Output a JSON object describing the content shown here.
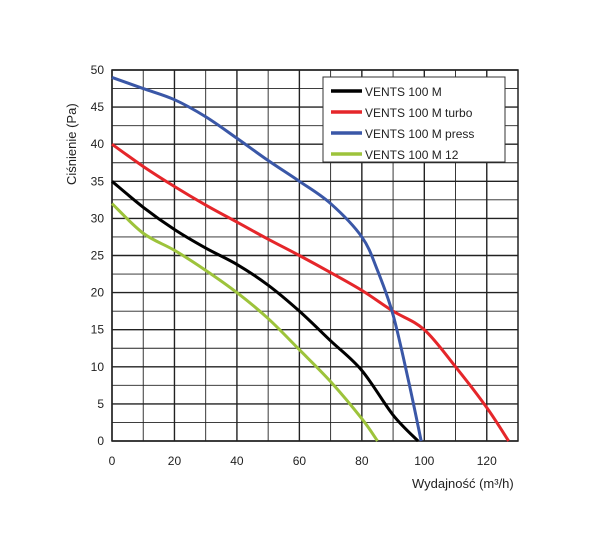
{
  "chart_data": {
    "type": "line",
    "title": "",
    "xlabel": "Wydajność (m³/h)",
    "ylabel": "Ciśnienie (Pa)",
    "xlim": [
      0,
      130
    ],
    "ylim": [
      0,
      50
    ],
    "xticks": [
      0,
      20,
      40,
      60,
      80,
      100,
      120
    ],
    "yticks": [
      0,
      5,
      10,
      15,
      20,
      25,
      30,
      35,
      40,
      45,
      50
    ],
    "grid": true,
    "legend_position": "top-right",
    "series": [
      {
        "name": "VENTS 100 M",
        "color": "#000000",
        "x": [
          0,
          10,
          20,
          30,
          40,
          50,
          60,
          70,
          80,
          90,
          98
        ],
        "y": [
          35,
          31.5,
          28.5,
          26,
          23.8,
          21,
          17.5,
          13.5,
          9.5,
          3.5,
          0
        ]
      },
      {
        "name": "VENTS 100 M turbo",
        "color": "#e5262a",
        "x": [
          0,
          10,
          20,
          30,
          40,
          50,
          60,
          70,
          80,
          90,
          100,
          110,
          120,
          127
        ],
        "y": [
          40,
          37,
          34.3,
          31.8,
          29.5,
          27.2,
          25,
          22.7,
          20.3,
          17.5,
          15,
          10,
          4.5,
          0
        ]
      },
      {
        "name": "VENTS 100 M press",
        "color": "#3a57a7",
        "x": [
          0,
          10,
          20,
          30,
          40,
          50,
          60,
          70,
          80,
          85,
          90,
          95,
          99
        ],
        "y": [
          49,
          47.5,
          46,
          43.7,
          40.8,
          37.8,
          35,
          32,
          27.5,
          23,
          17,
          8,
          0
        ]
      },
      {
        "name": "VENTS 100 M 12",
        "color": "#9dc33b",
        "x": [
          0,
          10,
          20,
          30,
          40,
          50,
          60,
          70,
          80,
          85
        ],
        "y": [
          32,
          28,
          25.7,
          23,
          20,
          16.5,
          12.3,
          8,
          3,
          0
        ]
      }
    ]
  }
}
